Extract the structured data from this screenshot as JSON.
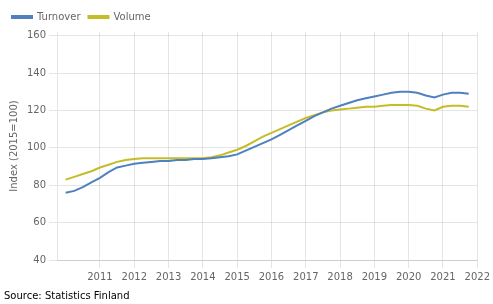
{
  "chart_data": {
    "type": "line",
    "ylabel": "Index (2015=100)",
    "annotations": [
      "Source: Statistics Finland"
    ],
    "x": [
      2010,
      2010.25,
      2010.5,
      2010.75,
      2011,
      2011.25,
      2011.5,
      2011.75,
      2012,
      2012.25,
      2012.5,
      2012.75,
      2013,
      2013.25,
      2013.5,
      2013.75,
      2014,
      2014.25,
      2014.5,
      2014.75,
      2015,
      2015.25,
      2015.5,
      2015.75,
      2016,
      2016.25,
      2016.5,
      2016.75,
      2017,
      2017.25,
      2017.5,
      2017.75,
      2018,
      2018.25,
      2018.5,
      2018.75,
      2019,
      2019.25,
      2019.5,
      2019.75,
      2020,
      2020.25,
      2020.5,
      2020.75,
      2021,
      2021.25,
      2021.5,
      2021.75
    ],
    "series": [
      {
        "name": "Turnover",
        "color": "#4e81bd",
        "values": [
          76.0,
          77.0,
          79.0,
          81.5,
          84.0,
          87.0,
          89.5,
          90.5,
          91.5,
          92.0,
          92.5,
          93.0,
          93.0,
          93.5,
          93.5,
          94.0,
          94.0,
          94.5,
          95.0,
          95.5,
          96.5,
          98.5,
          100.5,
          102.5,
          104.5,
          107.0,
          109.5,
          112.0,
          114.5,
          117.0,
          119.0,
          121.0,
          122.5,
          124.0,
          125.5,
          126.5,
          127.5,
          128.5,
          129.5,
          130.0,
          130.0,
          129.5,
          128.0,
          127.0,
          128.5,
          129.5,
          129.5,
          129.0
        ]
      },
      {
        "name": "Volume",
        "color": "#c4bd27",
        "values": [
          83.0,
          84.5,
          86.0,
          87.5,
          89.5,
          91.0,
          92.5,
          93.5,
          94.0,
          94.5,
          94.5,
          94.5,
          94.5,
          94.5,
          94.5,
          94.5,
          94.5,
          95.0,
          96.0,
          97.5,
          99.0,
          101.0,
          103.5,
          106.0,
          108.0,
          110.0,
          112.0,
          114.0,
          116.0,
          117.5,
          119.0,
          120.0,
          120.5,
          121.0,
          121.5,
          122.0,
          122.0,
          122.5,
          123.0,
          123.0,
          123.0,
          122.5,
          121.0,
          120.0,
          122.0,
          122.5,
          122.5,
          122.0
        ]
      }
    ],
    "xlim": [
      2009.75,
      2022.0
    ],
    "xticks": [
      2011,
      2012,
      2013,
      2014,
      2015,
      2016,
      2017,
      2018,
      2019,
      2020,
      2021,
      2022
    ],
    "ylim": [
      40,
      162
    ],
    "yticks": [
      40,
      60,
      80,
      100,
      120,
      140,
      160
    ],
    "grid": true,
    "legend": "upper left"
  }
}
